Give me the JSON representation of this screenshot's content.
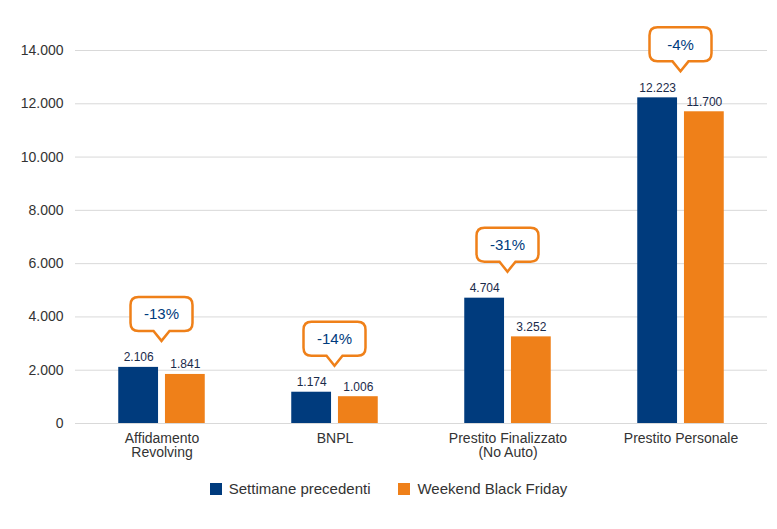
{
  "chart_data": {
    "type": "bar",
    "categories": [
      "Affidamento\nRevolving",
      "BNPL",
      "Prestito Finalizzato\n(No Auto)",
      "Prestito Personale"
    ],
    "series": [
      {
        "name": "Settimane precedenti",
        "color": "#003b7d",
        "values": [
          2106,
          1174,
          4704,
          12223
        ],
        "value_labels": [
          "2.106",
          "1.174",
          "4.704",
          "12.223"
        ]
      },
      {
        "name": "Weekend Black Friday",
        "color": "#ef8019",
        "values": [
          1841,
          1006,
          3252,
          11700
        ],
        "value_labels": [
          "1.841",
          "1.006",
          "3.252",
          "11.700"
        ]
      }
    ],
    "annotations": [
      {
        "category": "Affidamento\nRevolving",
        "text": "-13%"
      },
      {
        "category": "BNPL",
        "text": "-14%"
      },
      {
        "category": "Prestito Finalizzato\n(No Auto)",
        "text": "-31%"
      },
      {
        "category": "Prestito Personale",
        "text": "-4%"
      }
    ],
    "ylim": [
      0,
      14000
    ],
    "yticks": [
      0,
      {
        "value": 2000,
        "label": "2.000"
      },
      {
        "value": 4000,
        "label": "4.000"
      },
      {
        "value": 6000,
        "label": "6.000"
      },
      {
        "value": 8000,
        "label": "8.000"
      },
      {
        "value": 10000,
        "label": "10.000"
      },
      {
        "value": 12000,
        "label": "12.000"
      },
      {
        "value": 14000,
        "label": "14.000"
      }
    ],
    "grid": true,
    "legend": "bottom",
    "data_labels": true
  }
}
